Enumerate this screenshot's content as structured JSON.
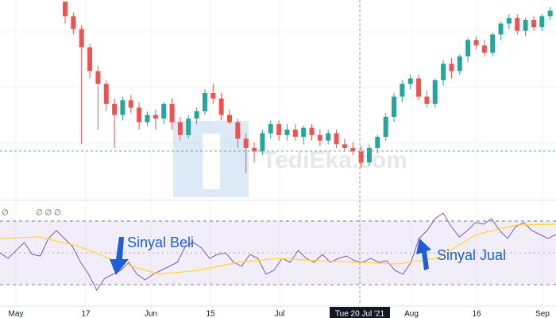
{
  "chart_data": [
    {
      "type": "candlestick",
      "up_color": "#26a69a",
      "down_color": "#ef5350",
      "ylim": [
        0,
        100
      ],
      "watermark": "TediEka.com",
      "x_labels": [
        "May",
        "17",
        "Jun",
        "15",
        "Jul",
        "Tue 20 Jul '21",
        "Aug",
        "16",
        "Sep"
      ],
      "open": [
        100,
        92,
        85,
        75,
        62,
        55,
        44,
        38,
        46,
        42,
        34,
        38,
        36,
        44,
        34,
        27,
        36,
        40,
        50,
        47,
        38,
        34,
        25,
        20,
        18,
        28,
        33,
        27,
        30,
        26,
        31,
        27,
        24,
        28,
        22,
        20,
        18,
        12,
        20,
        26,
        37,
        48,
        55,
        58,
        48,
        44,
        57,
        66,
        62,
        70,
        79,
        76,
        72,
        82,
        88,
        91,
        84,
        90,
        86,
        92
      ],
      "high": [
        100,
        94,
        87,
        77,
        65,
        57,
        47,
        48,
        49,
        45,
        40,
        41,
        45,
        47,
        37,
        38,
        42,
        52,
        55,
        50,
        41,
        36,
        28,
        23,
        30,
        35,
        35,
        33,
        33,
        32,
        33,
        30,
        30,
        30,
        25,
        23,
        21,
        22,
        27,
        39,
        50,
        57,
        60,
        60,
        51,
        58,
        68,
        69,
        71,
        80,
        81,
        79,
        83,
        89,
        93,
        93,
        91,
        92,
        93,
        97
      ],
      "low": [
        88,
        82,
        22,
        58,
        30,
        40,
        20,
        35,
        39,
        30,
        32,
        30,
        33,
        30,
        24,
        25,
        33,
        38,
        44,
        35,
        33,
        20,
        6,
        12,
        16,
        25,
        24,
        24,
        24,
        22,
        24,
        21,
        22,
        20,
        18,
        16,
        9,
        10,
        17,
        24,
        34,
        45,
        52,
        46,
        42,
        42,
        54,
        58,
        60,
        67,
        74,
        70,
        70,
        79,
        85,
        82,
        81,
        84,
        84,
        90
      ],
      "close": [
        92,
        85,
        75,
        62,
        55,
        44,
        38,
        46,
        42,
        34,
        38,
        36,
        44,
        34,
        27,
        36,
        40,
        50,
        47,
        38,
        34,
        25,
        20,
        18,
        28,
        33,
        27,
        30,
        26,
        31,
        27,
        24,
        28,
        22,
        20,
        18,
        12,
        20,
        26,
        37,
        48,
        55,
        58,
        48,
        44,
        57,
        66,
        62,
        70,
        79,
        76,
        72,
        82,
        88,
        91,
        84,
        90,
        86,
        92,
        95
      ]
    },
    {
      "type": "line",
      "ylim": [
        21.5,
        81.5
      ],
      "bands": [
        30,
        70
      ],
      "midline": 50,
      "band_color": "#7e57c2",
      "legend_texts": [
        "∅",
        "∅ ∅ ∅"
      ],
      "annotations": [
        "Sinyal Beli",
        "Sinyal Jual"
      ],
      "series": [
        {
          "color": "#7e57c2",
          "values": [
            50,
            46.5,
            51.5,
            56.5,
            49,
            48,
            59,
            64,
            59,
            54,
            44,
            36.5,
            26.5,
            34,
            36.5,
            39,
            44,
            36.5,
            33,
            36.5,
            39,
            41.5,
            44,
            54,
            56.5,
            53,
            46.5,
            49,
            50,
            44,
            41.5,
            49,
            46.5,
            36.5,
            39,
            46.5,
            44,
            51.5,
            46.5,
            44,
            49,
            44,
            46.5,
            48,
            45,
            44,
            46.5,
            44,
            45,
            39,
            36.5,
            44,
            59,
            64,
            71.5,
            75,
            66.5,
            60,
            64,
            69,
            68,
            71.5,
            64,
            59,
            66.5,
            69,
            64,
            61.5,
            59,
            61.5
          ]
        },
        {
          "color": "#fdd835",
          "values": [
            59,
            60,
            54,
            44,
            36.5,
            39,
            44,
            46.5,
            45,
            44,
            43,
            46.5,
            61.5,
            67.5,
            68
          ]
        }
      ]
    }
  ]
}
